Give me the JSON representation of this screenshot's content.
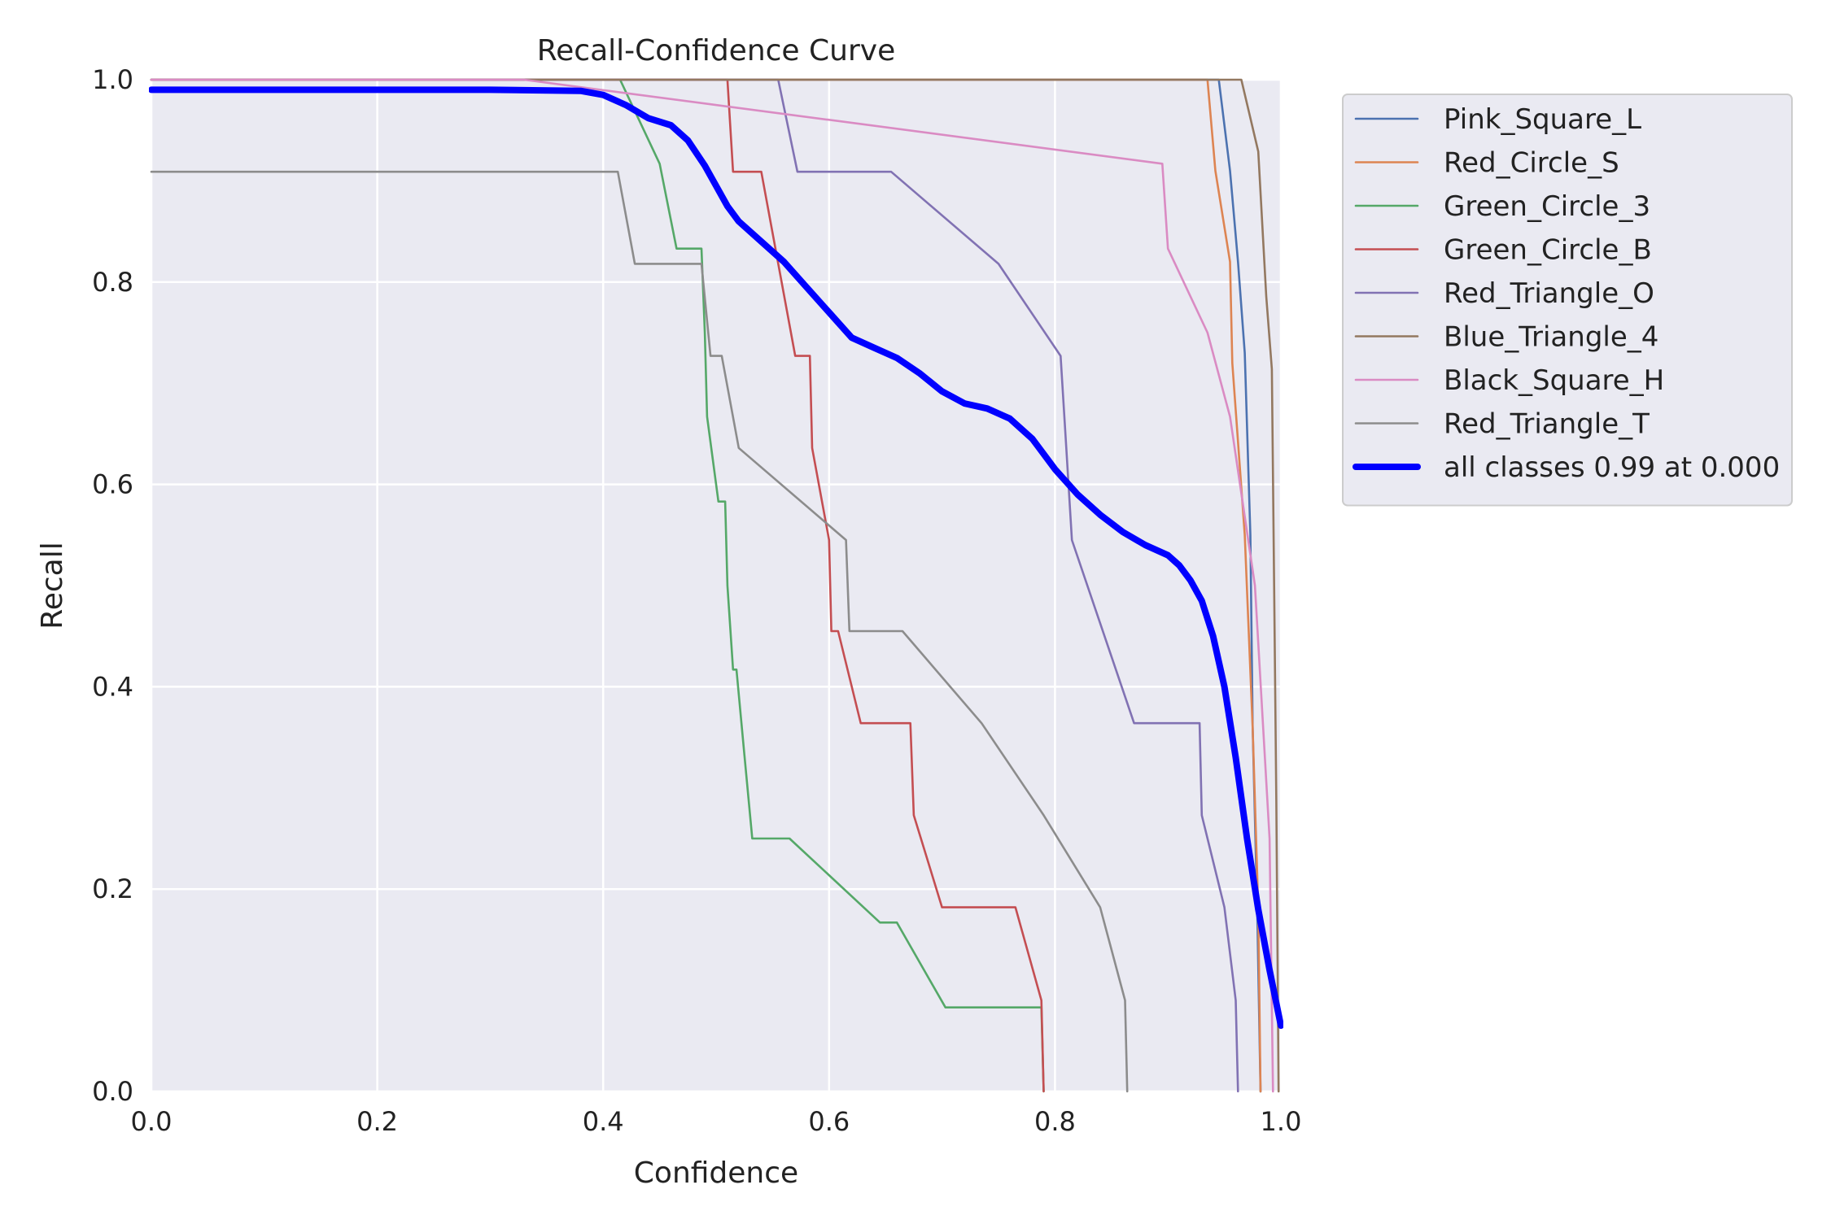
{
  "chart_data": {
    "type": "line",
    "title": "Recall-Confidence Curve",
    "xlabel": "Confidence",
    "ylabel": "Recall",
    "xlim": [
      0,
      1
    ],
    "ylim": [
      0,
      1
    ],
    "xticks": [
      "0.0",
      "0.2",
      "0.4",
      "0.6",
      "0.8",
      "1.0"
    ],
    "yticks": [
      "0.0",
      "0.2",
      "0.4",
      "0.6",
      "0.8",
      "1.0"
    ],
    "grid": true,
    "legend_position": "outside-right",
    "series": [
      {
        "name": "Pink_Square_L",
        "color": "#4c72b0",
        "points": [
          [
            0.0,
            1.0
          ],
          [
            0.945,
            1.0
          ],
          [
            0.955,
            0.91
          ],
          [
            0.962,
            0.82
          ],
          [
            0.968,
            0.73
          ],
          [
            0.973,
            0.55
          ],
          [
            0.975,
            0.36
          ],
          [
            0.979,
            0.18
          ],
          [
            0.982,
            0.0
          ]
        ]
      },
      {
        "name": "Red_Circle_S",
        "color": "#dd8452",
        "points": [
          [
            0.0,
            1.0
          ],
          [
            0.935,
            1.0
          ],
          [
            0.942,
            0.91
          ],
          [
            0.955,
            0.82
          ],
          [
            0.957,
            0.72
          ],
          [
            0.968,
            0.55
          ],
          [
            0.975,
            0.36
          ],
          [
            0.98,
            0.18
          ],
          [
            0.982,
            0.0
          ]
        ]
      },
      {
        "name": "Green_Circle_3",
        "color": "#55a868",
        "points": [
          [
            0.0,
            1.0
          ],
          [
            0.415,
            1.0
          ],
          [
            0.45,
            0.917
          ],
          [
            0.465,
            0.833
          ],
          [
            0.487,
            0.833
          ],
          [
            0.49,
            0.75
          ],
          [
            0.492,
            0.667
          ],
          [
            0.502,
            0.583
          ],
          [
            0.508,
            0.583
          ],
          [
            0.51,
            0.5
          ],
          [
            0.515,
            0.417
          ],
          [
            0.518,
            0.417
          ],
          [
            0.525,
            0.333
          ],
          [
            0.532,
            0.25
          ],
          [
            0.565,
            0.25
          ],
          [
            0.645,
            0.167
          ],
          [
            0.66,
            0.167
          ],
          [
            0.703,
            0.083
          ],
          [
            0.788,
            0.083
          ],
          [
            0.79,
            0.0
          ]
        ]
      },
      {
        "name": "Green_Circle_B",
        "color": "#c44e52",
        "points": [
          [
            0.0,
            1.0
          ],
          [
            0.51,
            1.0
          ],
          [
            0.515,
            0.909
          ],
          [
            0.54,
            0.909
          ],
          [
            0.57,
            0.727
          ],
          [
            0.583,
            0.727
          ],
          [
            0.585,
            0.636
          ],
          [
            0.6,
            0.545
          ],
          [
            0.602,
            0.455
          ],
          [
            0.608,
            0.455
          ],
          [
            0.628,
            0.364
          ],
          [
            0.672,
            0.364
          ],
          [
            0.675,
            0.273
          ],
          [
            0.7,
            0.182
          ],
          [
            0.765,
            0.182
          ],
          [
            0.788,
            0.09
          ],
          [
            0.79,
            0.0
          ]
        ]
      },
      {
        "name": "Red_Triangle_O",
        "color": "#8172b3",
        "points": [
          [
            0.0,
            1.0
          ],
          [
            0.555,
            1.0
          ],
          [
            0.572,
            0.909
          ],
          [
            0.655,
            0.909
          ],
          [
            0.75,
            0.818
          ],
          [
            0.805,
            0.727
          ],
          [
            0.81,
            0.636
          ],
          [
            0.815,
            0.545
          ],
          [
            0.87,
            0.364
          ],
          [
            0.928,
            0.364
          ],
          [
            0.93,
            0.273
          ],
          [
            0.95,
            0.182
          ],
          [
            0.96,
            0.09
          ],
          [
            0.962,
            0.0
          ]
        ]
      },
      {
        "name": "Blue_Triangle_4",
        "color": "#937860",
        "points": [
          [
            0.0,
            1.0
          ],
          [
            0.965,
            1.0
          ],
          [
            0.98,
            0.929
          ],
          [
            0.987,
            0.786
          ],
          [
            0.992,
            0.714
          ],
          [
            0.994,
            0.5
          ],
          [
            0.996,
            0.286
          ],
          [
            0.998,
            0.0
          ]
        ]
      },
      {
        "name": "Black_Square_H",
        "color": "#da8bc3",
        "points": [
          [
            0.0,
            1.0
          ],
          [
            0.33,
            1.0
          ],
          [
            0.895,
            0.917
          ],
          [
            0.9,
            0.833
          ],
          [
            0.935,
            0.75
          ],
          [
            0.955,
            0.667
          ],
          [
            0.977,
            0.5
          ],
          [
            0.99,
            0.25
          ],
          [
            0.993,
            0.0
          ]
        ]
      },
      {
        "name": "Red_Triangle_T",
        "color": "#8c8c8c",
        "points": [
          [
            0.0,
            0.909
          ],
          [
            0.413,
            0.909
          ],
          [
            0.428,
            0.818
          ],
          [
            0.487,
            0.818
          ],
          [
            0.495,
            0.727
          ],
          [
            0.505,
            0.727
          ],
          [
            0.52,
            0.636
          ],
          [
            0.615,
            0.545
          ],
          [
            0.618,
            0.455
          ],
          [
            0.665,
            0.455
          ],
          [
            0.735,
            0.364
          ],
          [
            0.79,
            0.273
          ],
          [
            0.84,
            0.182
          ],
          [
            0.862,
            0.09
          ],
          [
            0.864,
            0.0
          ]
        ]
      },
      {
        "name": "all classes 0.99 at 0.000",
        "color": "#0000ff",
        "bold": true,
        "points": [
          [
            0.0,
            0.99
          ],
          [
            0.3,
            0.99
          ],
          [
            0.38,
            0.989
          ],
          [
            0.4,
            0.985
          ],
          [
            0.42,
            0.975
          ],
          [
            0.44,
            0.962
          ],
          [
            0.46,
            0.955
          ],
          [
            0.475,
            0.94
          ],
          [
            0.49,
            0.915
          ],
          [
            0.5,
            0.895
          ],
          [
            0.51,
            0.875
          ],
          [
            0.52,
            0.86
          ],
          [
            0.54,
            0.84
          ],
          [
            0.56,
            0.82
          ],
          [
            0.58,
            0.795
          ],
          [
            0.6,
            0.77
          ],
          [
            0.62,
            0.745
          ],
          [
            0.64,
            0.735
          ],
          [
            0.66,
            0.725
          ],
          [
            0.68,
            0.71
          ],
          [
            0.7,
            0.692
          ],
          [
            0.72,
            0.68
          ],
          [
            0.74,
            0.675
          ],
          [
            0.76,
            0.665
          ],
          [
            0.78,
            0.645
          ],
          [
            0.8,
            0.615
          ],
          [
            0.82,
            0.59
          ],
          [
            0.84,
            0.57
          ],
          [
            0.86,
            0.553
          ],
          [
            0.88,
            0.54
          ],
          [
            0.9,
            0.53
          ],
          [
            0.91,
            0.52
          ],
          [
            0.92,
            0.505
          ],
          [
            0.93,
            0.485
          ],
          [
            0.94,
            0.45
          ],
          [
            0.95,
            0.4
          ],
          [
            0.96,
            0.33
          ],
          [
            0.97,
            0.25
          ],
          [
            0.98,
            0.18
          ],
          [
            0.99,
            0.12
          ],
          [
            1.0,
            0.065
          ]
        ]
      }
    ]
  }
}
